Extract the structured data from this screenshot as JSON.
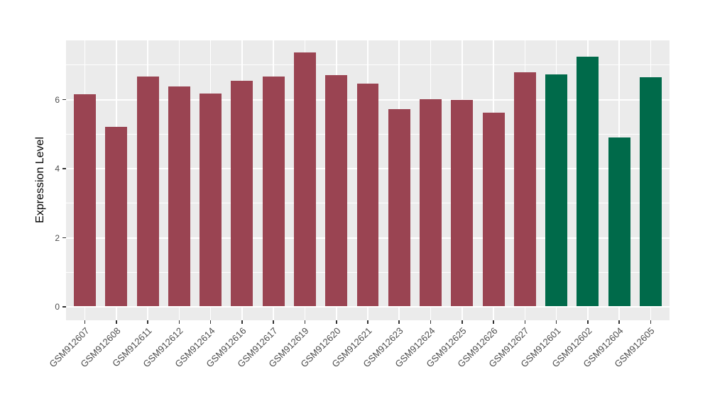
{
  "chart_data": {
    "type": "bar",
    "title": "",
    "xlabel": "",
    "ylabel": "Expression Level",
    "categories": [
      "GSM912607",
      "GSM912608",
      "GSM912611",
      "GSM912612",
      "GSM912614",
      "GSM912616",
      "GSM912617",
      "GSM912619",
      "GSM912620",
      "GSM912621",
      "GSM912623",
      "GSM912624",
      "GSM912625",
      "GSM912626",
      "GSM912627",
      "GSM912601",
      "GSM912602",
      "GSM912604",
      "GSM912605"
    ],
    "values": [
      6.13,
      5.19,
      6.65,
      6.35,
      6.16,
      6.52,
      6.64,
      7.35,
      6.68,
      6.45,
      5.7,
      5.98,
      5.96,
      5.6,
      6.76,
      6.7,
      7.22,
      4.89,
      6.63
    ],
    "bar_colors": [
      "#9A4452",
      "#9A4452",
      "#9A4452",
      "#9A4452",
      "#9A4452",
      "#9A4452",
      "#9A4452",
      "#9A4452",
      "#9A4452",
      "#9A4452",
      "#9A4452",
      "#9A4452",
      "#9A4452",
      "#9A4452",
      "#9A4452",
      "#006A4A",
      "#006A4A",
      "#006A4A",
      "#006A4A"
    ],
    "yticks": [
      "0",
      "2",
      "4",
      "6"
    ],
    "ytick_values": [
      0,
      2,
      4,
      6
    ],
    "minor_ytick_values": [
      1,
      3,
      5,
      7
    ],
    "ylim": [
      0,
      7.72
    ],
    "grid": "on",
    "legend_position": "none",
    "colors": {
      "panel_background": "#EBEBEB",
      "gridline": "#FFFFFF",
      "bar_group_main": "#9A4452",
      "bar_group_highlight": "#006A4A",
      "axis_text": "#4D4D4D",
      "axis_title": "#000000",
      "tick_mark": "#333333",
      "figure_background": "#FFFFFF"
    }
  }
}
